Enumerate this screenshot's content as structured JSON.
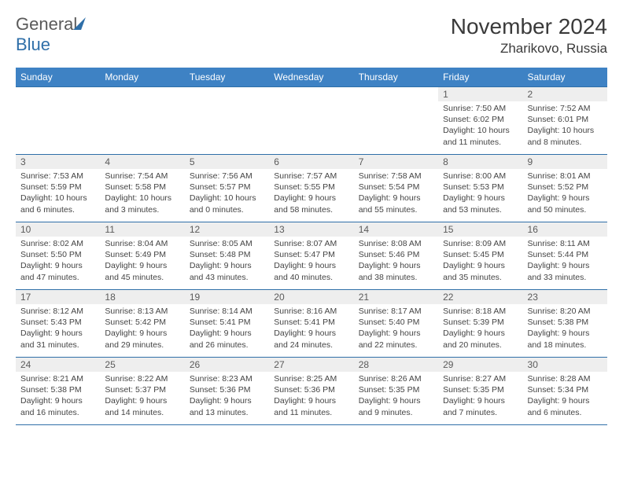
{
  "logo": {
    "word1": "General",
    "word2": "Blue"
  },
  "title": "November 2024",
  "location": "Zharikovo, Russia",
  "colors": {
    "header_bg": "#3e82c4",
    "header_text": "#ffffff",
    "border": "#2f6fa8",
    "daynum_bg": "#eeeeee",
    "text": "#444444",
    "logo_gray": "#5a5a5a",
    "logo_blue": "#2f6fa8"
  },
  "weekdays": [
    "Sunday",
    "Monday",
    "Tuesday",
    "Wednesday",
    "Thursday",
    "Friday",
    "Saturday"
  ],
  "weeks": [
    [
      {
        "num": "",
        "sunrise": "",
        "sunset": "",
        "daylight": "",
        "empty": true
      },
      {
        "num": "",
        "sunrise": "",
        "sunset": "",
        "daylight": "",
        "empty": true
      },
      {
        "num": "",
        "sunrise": "",
        "sunset": "",
        "daylight": "",
        "empty": true
      },
      {
        "num": "",
        "sunrise": "",
        "sunset": "",
        "daylight": "",
        "empty": true
      },
      {
        "num": "",
        "sunrise": "",
        "sunset": "",
        "daylight": "",
        "empty": true
      },
      {
        "num": "1",
        "sunrise": "Sunrise: 7:50 AM",
        "sunset": "Sunset: 6:02 PM",
        "daylight": "Daylight: 10 hours and 11 minutes."
      },
      {
        "num": "2",
        "sunrise": "Sunrise: 7:52 AM",
        "sunset": "Sunset: 6:01 PM",
        "daylight": "Daylight: 10 hours and 8 minutes."
      }
    ],
    [
      {
        "num": "3",
        "sunrise": "Sunrise: 7:53 AM",
        "sunset": "Sunset: 5:59 PM",
        "daylight": "Daylight: 10 hours and 6 minutes."
      },
      {
        "num": "4",
        "sunrise": "Sunrise: 7:54 AM",
        "sunset": "Sunset: 5:58 PM",
        "daylight": "Daylight: 10 hours and 3 minutes."
      },
      {
        "num": "5",
        "sunrise": "Sunrise: 7:56 AM",
        "sunset": "Sunset: 5:57 PM",
        "daylight": "Daylight: 10 hours and 0 minutes."
      },
      {
        "num": "6",
        "sunrise": "Sunrise: 7:57 AM",
        "sunset": "Sunset: 5:55 PM",
        "daylight": "Daylight: 9 hours and 58 minutes."
      },
      {
        "num": "7",
        "sunrise": "Sunrise: 7:58 AM",
        "sunset": "Sunset: 5:54 PM",
        "daylight": "Daylight: 9 hours and 55 minutes."
      },
      {
        "num": "8",
        "sunrise": "Sunrise: 8:00 AM",
        "sunset": "Sunset: 5:53 PM",
        "daylight": "Daylight: 9 hours and 53 minutes."
      },
      {
        "num": "9",
        "sunrise": "Sunrise: 8:01 AM",
        "sunset": "Sunset: 5:52 PM",
        "daylight": "Daylight: 9 hours and 50 minutes."
      }
    ],
    [
      {
        "num": "10",
        "sunrise": "Sunrise: 8:02 AM",
        "sunset": "Sunset: 5:50 PM",
        "daylight": "Daylight: 9 hours and 47 minutes."
      },
      {
        "num": "11",
        "sunrise": "Sunrise: 8:04 AM",
        "sunset": "Sunset: 5:49 PM",
        "daylight": "Daylight: 9 hours and 45 minutes."
      },
      {
        "num": "12",
        "sunrise": "Sunrise: 8:05 AM",
        "sunset": "Sunset: 5:48 PM",
        "daylight": "Daylight: 9 hours and 43 minutes."
      },
      {
        "num": "13",
        "sunrise": "Sunrise: 8:07 AM",
        "sunset": "Sunset: 5:47 PM",
        "daylight": "Daylight: 9 hours and 40 minutes."
      },
      {
        "num": "14",
        "sunrise": "Sunrise: 8:08 AM",
        "sunset": "Sunset: 5:46 PM",
        "daylight": "Daylight: 9 hours and 38 minutes."
      },
      {
        "num": "15",
        "sunrise": "Sunrise: 8:09 AM",
        "sunset": "Sunset: 5:45 PM",
        "daylight": "Daylight: 9 hours and 35 minutes."
      },
      {
        "num": "16",
        "sunrise": "Sunrise: 8:11 AM",
        "sunset": "Sunset: 5:44 PM",
        "daylight": "Daylight: 9 hours and 33 minutes."
      }
    ],
    [
      {
        "num": "17",
        "sunrise": "Sunrise: 8:12 AM",
        "sunset": "Sunset: 5:43 PM",
        "daylight": "Daylight: 9 hours and 31 minutes."
      },
      {
        "num": "18",
        "sunrise": "Sunrise: 8:13 AM",
        "sunset": "Sunset: 5:42 PM",
        "daylight": "Daylight: 9 hours and 29 minutes."
      },
      {
        "num": "19",
        "sunrise": "Sunrise: 8:14 AM",
        "sunset": "Sunset: 5:41 PM",
        "daylight": "Daylight: 9 hours and 26 minutes."
      },
      {
        "num": "20",
        "sunrise": "Sunrise: 8:16 AM",
        "sunset": "Sunset: 5:41 PM",
        "daylight": "Daylight: 9 hours and 24 minutes."
      },
      {
        "num": "21",
        "sunrise": "Sunrise: 8:17 AM",
        "sunset": "Sunset: 5:40 PM",
        "daylight": "Daylight: 9 hours and 22 minutes."
      },
      {
        "num": "22",
        "sunrise": "Sunrise: 8:18 AM",
        "sunset": "Sunset: 5:39 PM",
        "daylight": "Daylight: 9 hours and 20 minutes."
      },
      {
        "num": "23",
        "sunrise": "Sunrise: 8:20 AM",
        "sunset": "Sunset: 5:38 PM",
        "daylight": "Daylight: 9 hours and 18 minutes."
      }
    ],
    [
      {
        "num": "24",
        "sunrise": "Sunrise: 8:21 AM",
        "sunset": "Sunset: 5:38 PM",
        "daylight": "Daylight: 9 hours and 16 minutes."
      },
      {
        "num": "25",
        "sunrise": "Sunrise: 8:22 AM",
        "sunset": "Sunset: 5:37 PM",
        "daylight": "Daylight: 9 hours and 14 minutes."
      },
      {
        "num": "26",
        "sunrise": "Sunrise: 8:23 AM",
        "sunset": "Sunset: 5:36 PM",
        "daylight": "Daylight: 9 hours and 13 minutes."
      },
      {
        "num": "27",
        "sunrise": "Sunrise: 8:25 AM",
        "sunset": "Sunset: 5:36 PM",
        "daylight": "Daylight: 9 hours and 11 minutes."
      },
      {
        "num": "28",
        "sunrise": "Sunrise: 8:26 AM",
        "sunset": "Sunset: 5:35 PM",
        "daylight": "Daylight: 9 hours and 9 minutes."
      },
      {
        "num": "29",
        "sunrise": "Sunrise: 8:27 AM",
        "sunset": "Sunset: 5:35 PM",
        "daylight": "Daylight: 9 hours and 7 minutes."
      },
      {
        "num": "30",
        "sunrise": "Sunrise: 8:28 AM",
        "sunset": "Sunset: 5:34 PM",
        "daylight": "Daylight: 9 hours and 6 minutes."
      }
    ]
  ]
}
